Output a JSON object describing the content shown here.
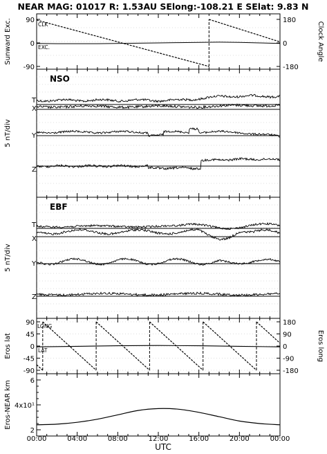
{
  "chart_data": {
    "type": "line",
    "title": "NEAR MAG: 01017  R: 1.53AU  SElong:-108.21 E  SElat:   9.83 N",
    "xlabel": "UTC",
    "x_ticks": [
      "00:00",
      "04:00",
      "08:00",
      "12:00",
      "16:00",
      "20:00",
      "00:00"
    ],
    "xlim_hours": [
      0,
      24
    ],
    "panels": [
      {
        "id": "sunward",
        "ylabel_left": "Sunward Exc.",
        "ylabel_right": "Clock Angle",
        "left_ticks": [
          90,
          0,
          -90
        ],
        "right_ticks": [
          180,
          0,
          -180
        ],
        "ylim_left": [
          -90,
          90
        ],
        "ylim_right": [
          -180,
          180
        ],
        "series_labels": [
          "CLK",
          "EXC."
        ],
        "series": [
          {
            "name": "CLK",
            "axis": "right",
            "style": "dashed",
            "segments": [
              [
                [
                  0,
                  175
                ],
                [
                  17,
                  -180
                ]
              ],
              [
                [
                  17,
                  180
                ],
                [
                  24,
                  8
                ]
              ]
            ]
          },
          {
            "name": "EXC.",
            "axis": "left",
            "style": "solid",
            "x": [
              0,
              2,
              4,
              6,
              8,
              10,
              12,
              14,
              16,
              18,
              20,
              22,
              24
            ],
            "values": [
              -2,
              -3,
              -3,
              -3,
              -2,
              -1,
              0,
              1,
              2,
              3,
              2,
              0,
              -2
            ]
          }
        ]
      },
      {
        "id": "nso",
        "name": "NSO",
        "ylabel_left": "5 nT/div",
        "components": [
          "T",
          "X",
          "Y",
          "Z"
        ]
      },
      {
        "id": "ebf",
        "name": "EBF",
        "ylabel_left": "5 nT/div",
        "components": [
          "T",
          "X",
          "Y",
          "Z"
        ]
      },
      {
        "id": "eros",
        "ylabel_left": "Eros lat",
        "ylabel_right": "Eros long",
        "left_ticks": [
          90,
          45,
          0,
          -45,
          -90
        ],
        "right_ticks": [
          180,
          90,
          0,
          -90,
          -180
        ],
        "ylim_left": [
          -90,
          90
        ],
        "ylim_right": [
          -180,
          180
        ],
        "series_labels": [
          "LONG",
          "LAT"
        ],
        "series": [
          {
            "name": "LONG",
            "axis": "right",
            "style": "dashed",
            "period_hours": 5.27,
            "breaks_hours": [
              0.6,
              5.87,
              11.14,
              16.41,
              21.68
            ]
          },
          {
            "name": "LAT",
            "axis": "left",
            "style": "solid",
            "x": [
              0,
              4,
              8,
              12,
              16,
              20,
              24
            ],
            "values": [
              -3,
              -1,
              1,
              2,
              1,
              -1,
              -3
            ]
          }
        ]
      },
      {
        "id": "dist",
        "ylabel_left": "Eros-NEAR km",
        "left_ticks": [
          "6",
          "4x10¹",
          "2"
        ],
        "series": [
          {
            "name": "distance",
            "axis": "left",
            "style": "solid",
            "x": [
              0,
              2,
              4,
              6,
              8,
              10,
              12,
              14,
              16,
              18,
              20,
              22,
              24
            ],
            "values": [
              24,
              24.5,
              26,
              28.5,
              32,
              35.5,
              37,
              36.5,
              34,
              30.5,
              27,
              25,
              24
            ]
          }
        ]
      }
    ]
  }
}
